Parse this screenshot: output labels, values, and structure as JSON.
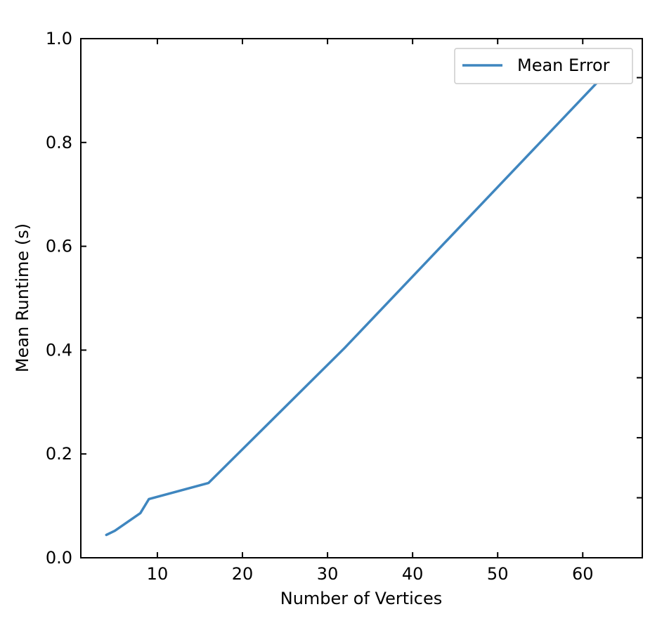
{
  "chart_data": {
    "type": "line",
    "title": "",
    "xlabel": "Number of Vertices",
    "ylabel": "Mean Runtime (s)",
    "xlim": [
      1,
      67
    ],
    "ylim": [
      0.0,
      1.0
    ],
    "x_ticks": [
      10,
      20,
      30,
      40,
      50,
      60
    ],
    "y_ticks": [
      0.0,
      0.2,
      0.4,
      0.6,
      0.8,
      1.0
    ],
    "x_tick_labels": [
      "10",
      "20",
      "30",
      "40",
      "50",
      "60"
    ],
    "y_tick_labels": [
      "0.0",
      "0.2",
      "0.4",
      "0.6",
      "0.8",
      "1.0"
    ],
    "grid": false,
    "legend_position": "top-right",
    "series": [
      {
        "name": "Mean Error",
        "color": "#3f86bf",
        "x": [
          4,
          5,
          8,
          9,
          16,
          32,
          63
        ],
        "y": [
          0.044,
          0.052,
          0.086,
          0.113,
          0.144,
          0.404,
          0.938
        ]
      }
    ]
  }
}
